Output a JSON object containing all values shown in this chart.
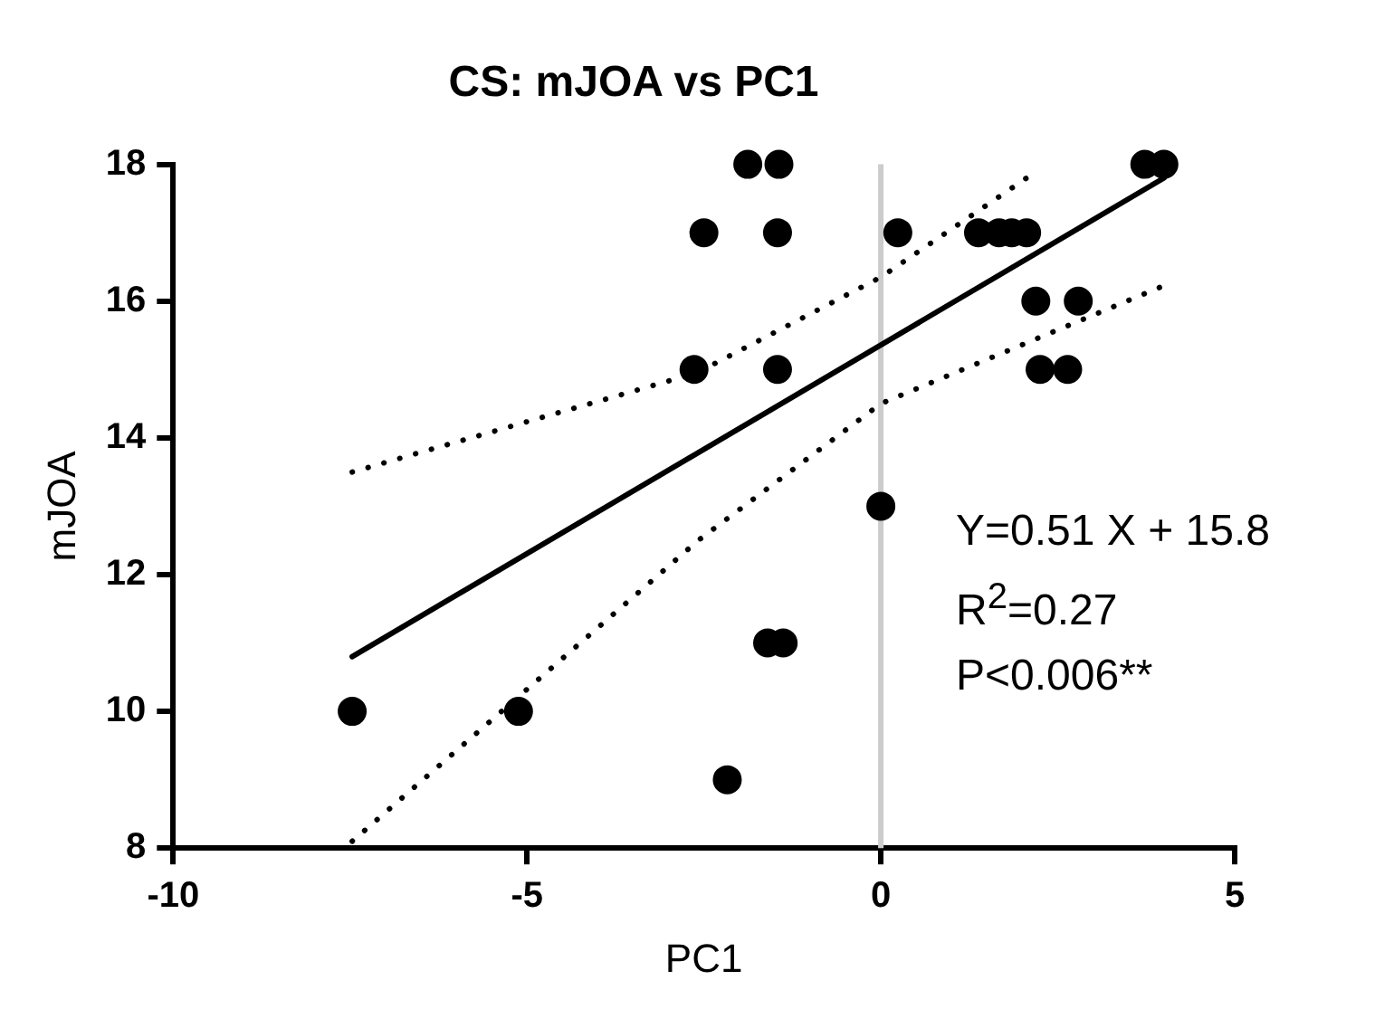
{
  "chart_data": {
    "type": "scatter",
    "title": "CS: mJOA vs PC1",
    "xlabel": "PC1",
    "ylabel": "mJOA",
    "xlim": [
      -10,
      5
    ],
    "xticks": [
      -10,
      -5,
      0,
      5
    ],
    "ylim": [
      8,
      18
    ],
    "yticks": [
      8,
      10,
      12,
      14,
      16,
      18
    ],
    "grid": false,
    "legend": false,
    "marker": "circle",
    "series": [
      {
        "type": "scatter",
        "color": "#000000",
        "x": [
          -1.88,
          -1.44,
          -2.5,
          -1.46,
          0.24,
          1.38,
          1.67,
          1.85,
          2.06,
          2.19,
          2.79,
          2.25,
          2.64,
          -2.64,
          -1.46,
          0,
          -1.6,
          -1.38,
          -2.17,
          3.73,
          4.0,
          -7.47,
          -5.12
        ],
        "values": [
          18,
          18,
          17,
          17,
          17,
          17,
          17,
          17,
          17,
          16,
          16,
          15,
          15,
          15,
          15,
          13,
          11,
          11,
          9,
          18,
          18,
          10,
          10
        ]
      },
      {
        "type": "line",
        "color": "#000000",
        "marker": "none",
        "line_style": "solid",
        "x": [
          -7.47,
          4.0
        ],
        "values": [
          10.8,
          17.8
        ]
      },
      {
        "type": "line",
        "color": "#000000",
        "marker": "none",
        "line_style": "dotted",
        "x": [
          -7.47,
          -2.6,
          0,
          2.06
        ],
        "values": [
          13.5,
          14.95,
          16.35,
          17.8
        ]
      },
      {
        "type": "line",
        "color": "#000000",
        "marker": "none",
        "line_style": "dotted",
        "x": [
          -7.47,
          -2.58,
          0,
          3.94
        ],
        "values": [
          8.1,
          12.5,
          14.5,
          16.2
        ]
      }
    ],
    "ref_lines": [
      {
        "axis": "x",
        "value": 0,
        "color": "#cccccc"
      }
    ],
    "annotations": [
      "Y=0.51 X + 15.8",
      "R$^{2}$=0.27",
      "P<0.006**"
    ]
  }
}
